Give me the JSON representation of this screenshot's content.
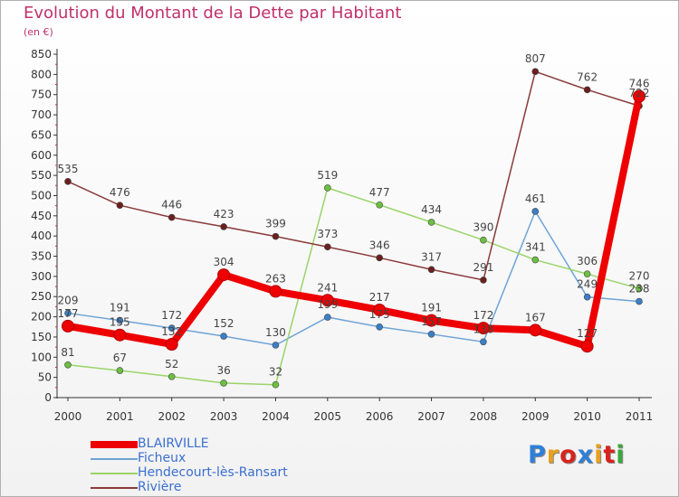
{
  "title": "Evolution du Montant de la Dette par Habitant",
  "unit_label": "(en €)",
  "logo": {
    "text": "Proxiti",
    "colors": [
      "#2f7fd6",
      "#e8a020",
      "#d8231c",
      "#2f7fd6",
      "#e8a020",
      "#d8231c",
      "#3aa83a"
    ]
  },
  "chart_data": {
    "type": "line",
    "title": "Evolution du Montant de la Dette par Habitant",
    "ylabel": "(en €)",
    "xlabel": "",
    "x": [
      "2000",
      "2001",
      "2002",
      "2003",
      "2004",
      "2005",
      "2006",
      "2007",
      "2008",
      "2009",
      "2010",
      "2011"
    ],
    "ylim": [
      0,
      850
    ],
    "yticks": [
      0,
      50,
      100,
      150,
      200,
      250,
      300,
      350,
      400,
      450,
      500,
      550,
      600,
      650,
      700,
      750,
      800,
      850
    ],
    "grid": false,
    "legend_position": "bottom-left",
    "series": [
      {
        "name": "BLAIRVILLE",
        "color": "#ee0000",
        "point_color": "#ee0000",
        "highlight": true,
        "values": [
          177,
          155,
          132,
          304,
          263,
          241,
          217,
          191,
          172,
          167,
          127,
          746
        ]
      },
      {
        "name": "Ficheux",
        "color": "#6fa3d6",
        "point_color": "#3a7fc8",
        "highlight": false,
        "values": [
          209,
          191,
          172,
          152,
          130,
          199,
          175,
          157,
          138,
          461,
          249,
          238
        ]
      },
      {
        "name": "Hendecourt-lès-Ransart",
        "color": "#9ad46a",
        "point_color": "#6cc040",
        "highlight": false,
        "values": [
          81,
          67,
          52,
          36,
          32,
          519,
          477,
          434,
          390,
          341,
          306,
          270
        ]
      },
      {
        "name": "Rivière",
        "color": "#8a3a3a",
        "point_color": "#6b1f1f",
        "highlight": false,
        "values": [
          535,
          476,
          446,
          423,
          399,
          373,
          346,
          317,
          291,
          807,
          762,
          722
        ]
      }
    ]
  }
}
